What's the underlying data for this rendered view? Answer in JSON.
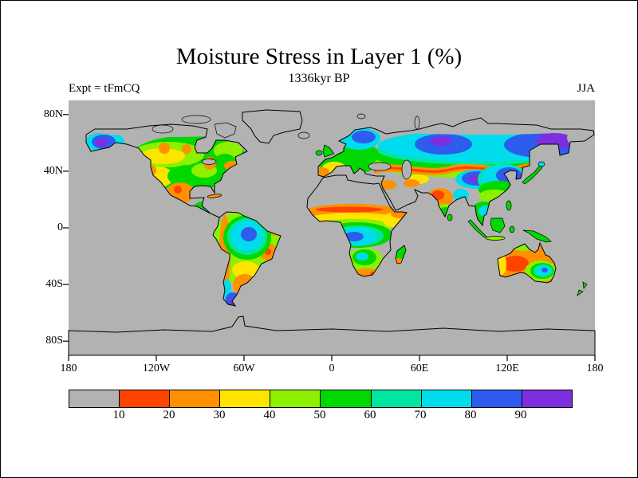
{
  "figure": {
    "title": "Moisture Stress in Layer 1 (%)",
    "subtitle": "1336kyr BP",
    "experiment_label": "Expt = tFmCQ",
    "season_label": "JJA"
  },
  "axes": {
    "lat_labels": [
      "80N",
      "40N",
      "0",
      "40S",
      "80S"
    ],
    "lon_labels": [
      "180",
      "120W",
      "60W",
      "0",
      "60E",
      "120E",
      "180"
    ]
  },
  "colorbar": {
    "labels": [
      "10",
      "20",
      "30",
      "40",
      "50",
      "60",
      "70",
      "80",
      "90"
    ],
    "colors": [
      "#b2b2b2",
      "#ff4400",
      "#ff9000",
      "#ffe400",
      "#8df000",
      "#00d800",
      "#00e6a0",
      "#00dcec",
      "#2e5cee",
      "#7d2fe0"
    ]
  },
  "palette": {
    "c0": "#b2b2b2",
    "c10": "#ff4400",
    "c20": "#ff9000",
    "c30": "#ffe400",
    "c40": "#8df000",
    "c50": "#00d800",
    "c60": "#00e6a0",
    "c70": "#00dcec",
    "c80": "#2e5cee",
    "c90": "#7d2fe0",
    "coastline": "#000000",
    "page_background": "#ffffff"
  },
  "chart_data": {
    "type": "heatmap",
    "title": "Moisture Stress in Layer 1 (%)",
    "subtitle": "1336kyr BP",
    "annotations": [
      "Expt = tFmCQ",
      "JJA"
    ],
    "x_ticks": [
      "180",
      "120W",
      "60W",
      "0",
      "60E",
      "120E",
      "180"
    ],
    "y_ticks": [
      "80N",
      "40N",
      "0",
      "40S",
      "80S"
    ],
    "colorbar_scale": {
      "tick_labels": [
        10,
        20,
        30,
        40,
        50,
        60,
        70,
        80,
        90
      ],
      "n_bins": 10,
      "bin_colors": [
        "#b2b2b2",
        "#ff4400",
        "#ff9000",
        "#ffe400",
        "#8df000",
        "#00d800",
        "#00e6a0",
        "#00dcec",
        "#2e5cee",
        "#7d2fe0"
      ]
    },
    "layout": "equirectangular world map, gray ocean/ice, filled percentage contours over land, colorbar legend at bottom"
  }
}
